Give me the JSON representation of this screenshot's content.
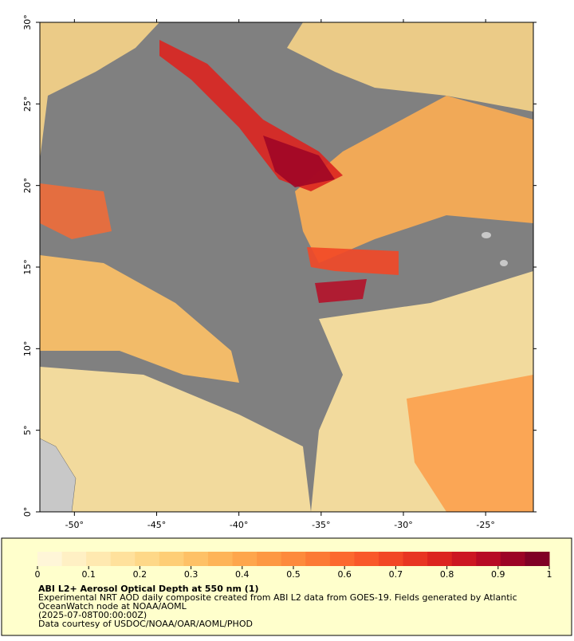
{
  "map": {
    "xlim": [
      -52.1,
      -22.1
    ],
    "ylim": [
      0,
      30
    ],
    "xticks": [
      {
        "value": -50,
        "label": "-50°"
      },
      {
        "value": -45,
        "label": "-45°"
      },
      {
        "value": -40,
        "label": "-40°"
      },
      {
        "value": -35,
        "label": "-35°"
      },
      {
        "value": -30,
        "label": "-30°"
      },
      {
        "value": -25,
        "label": "-25°"
      }
    ],
    "yticks": [
      {
        "value": 0,
        "label": "0°"
      },
      {
        "value": 5,
        "label": "5°"
      },
      {
        "value": 10,
        "label": "10°"
      },
      {
        "value": 15,
        "label": "15°"
      },
      {
        "value": 20,
        "label": "20°"
      },
      {
        "value": 25,
        "label": "25°"
      },
      {
        "value": 30,
        "label": "30°"
      }
    ]
  },
  "colorbar": {
    "lim": [
      0,
      1
    ],
    "ticks": [
      0,
      0.1,
      0.2,
      0.3,
      0.4,
      0.5,
      0.6,
      0.7,
      0.8,
      0.9,
      1
    ],
    "colors": [
      "#fff6d8",
      "#fff0c4",
      "#ffe9b0",
      "#ffe19c",
      "#fed888",
      "#fece76",
      "#fec166",
      "#feb458",
      "#fea64c",
      "#fd9843",
      "#fd8a3c",
      "#fc7a35",
      "#fc692f",
      "#f9582a",
      "#f24726",
      "#e83522",
      "#dc241f",
      "#cc1622",
      "#b70a25",
      "#9c0326",
      "#800026"
    ]
  },
  "caption": {
    "title": "ABI L2+ Aerosol Optical Depth at 550 nm (1)",
    "lines": [
      "Experimental NRT AOD daily composite created from ABI L2 data from GOES-19. Fields generated by Atlantic",
      "OceanWatch node at NOAA/AOML",
      "(2025-07-08T00:00:00Z)",
      "Data courtesy of USDOC/NOAA/OAR/AOML/PHOD"
    ]
  }
}
